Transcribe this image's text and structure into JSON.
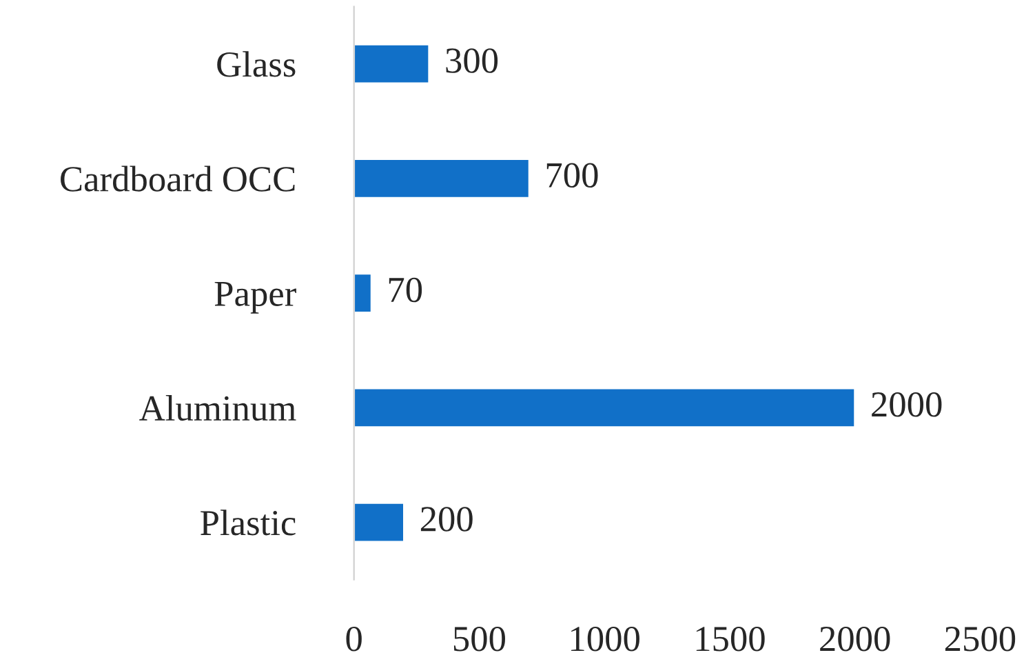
{
  "chart_data": {
    "type": "bar",
    "orientation": "horizontal",
    "categories": [
      "Glass",
      "Cardboard OCC",
      "Paper",
      "Aluminum",
      "Plastic"
    ],
    "values": [
      300,
      700,
      70,
      2000,
      200
    ],
    "color": "#1170c8",
    "xlim": [
      0,
      2500
    ],
    "xticks": [
      0,
      500,
      1000,
      1500,
      2000,
      2500
    ],
    "data_labels": true,
    "grid": false,
    "legend": false
  }
}
